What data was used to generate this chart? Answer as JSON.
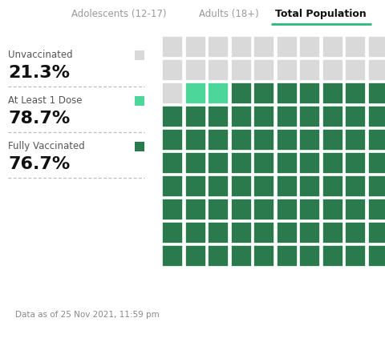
{
  "title_tabs": [
    "Adolescents (12-17)",
    "Adults (18+)",
    "Total Population"
  ],
  "active_tab": "Total Population",
  "tab_underline_color": "#2db87d",
  "grid_rows": 10,
  "grid_cols": 10,
  "categories": [
    {
      "label": "Unvaccinated",
      "percent": "21.3%",
      "color": "#d9d9d9",
      "count": 21
    },
    {
      "label": "At Least 1 Dose",
      "percent": "78.7%",
      "color": "#4cd69a",
      "count": 2
    },
    {
      "label": "Fully Vaccinated",
      "percent": "76.7%",
      "color": "#2a7a4e",
      "count": 77
    }
  ],
  "bg_color": "#ffffff",
  "footer_bg": "#ebebeb",
  "footer_text": "Data as of 25 Nov 2021, 11:59 pm",
  "footer_text_color": "#888888",
  "tab_inactive_color": "#999999",
  "tab_active_color": "#111111",
  "percent_color": "#111111",
  "label_color": "#555555",
  "white": "#ffffff",
  "dash_color": "#bbbbbb"
}
